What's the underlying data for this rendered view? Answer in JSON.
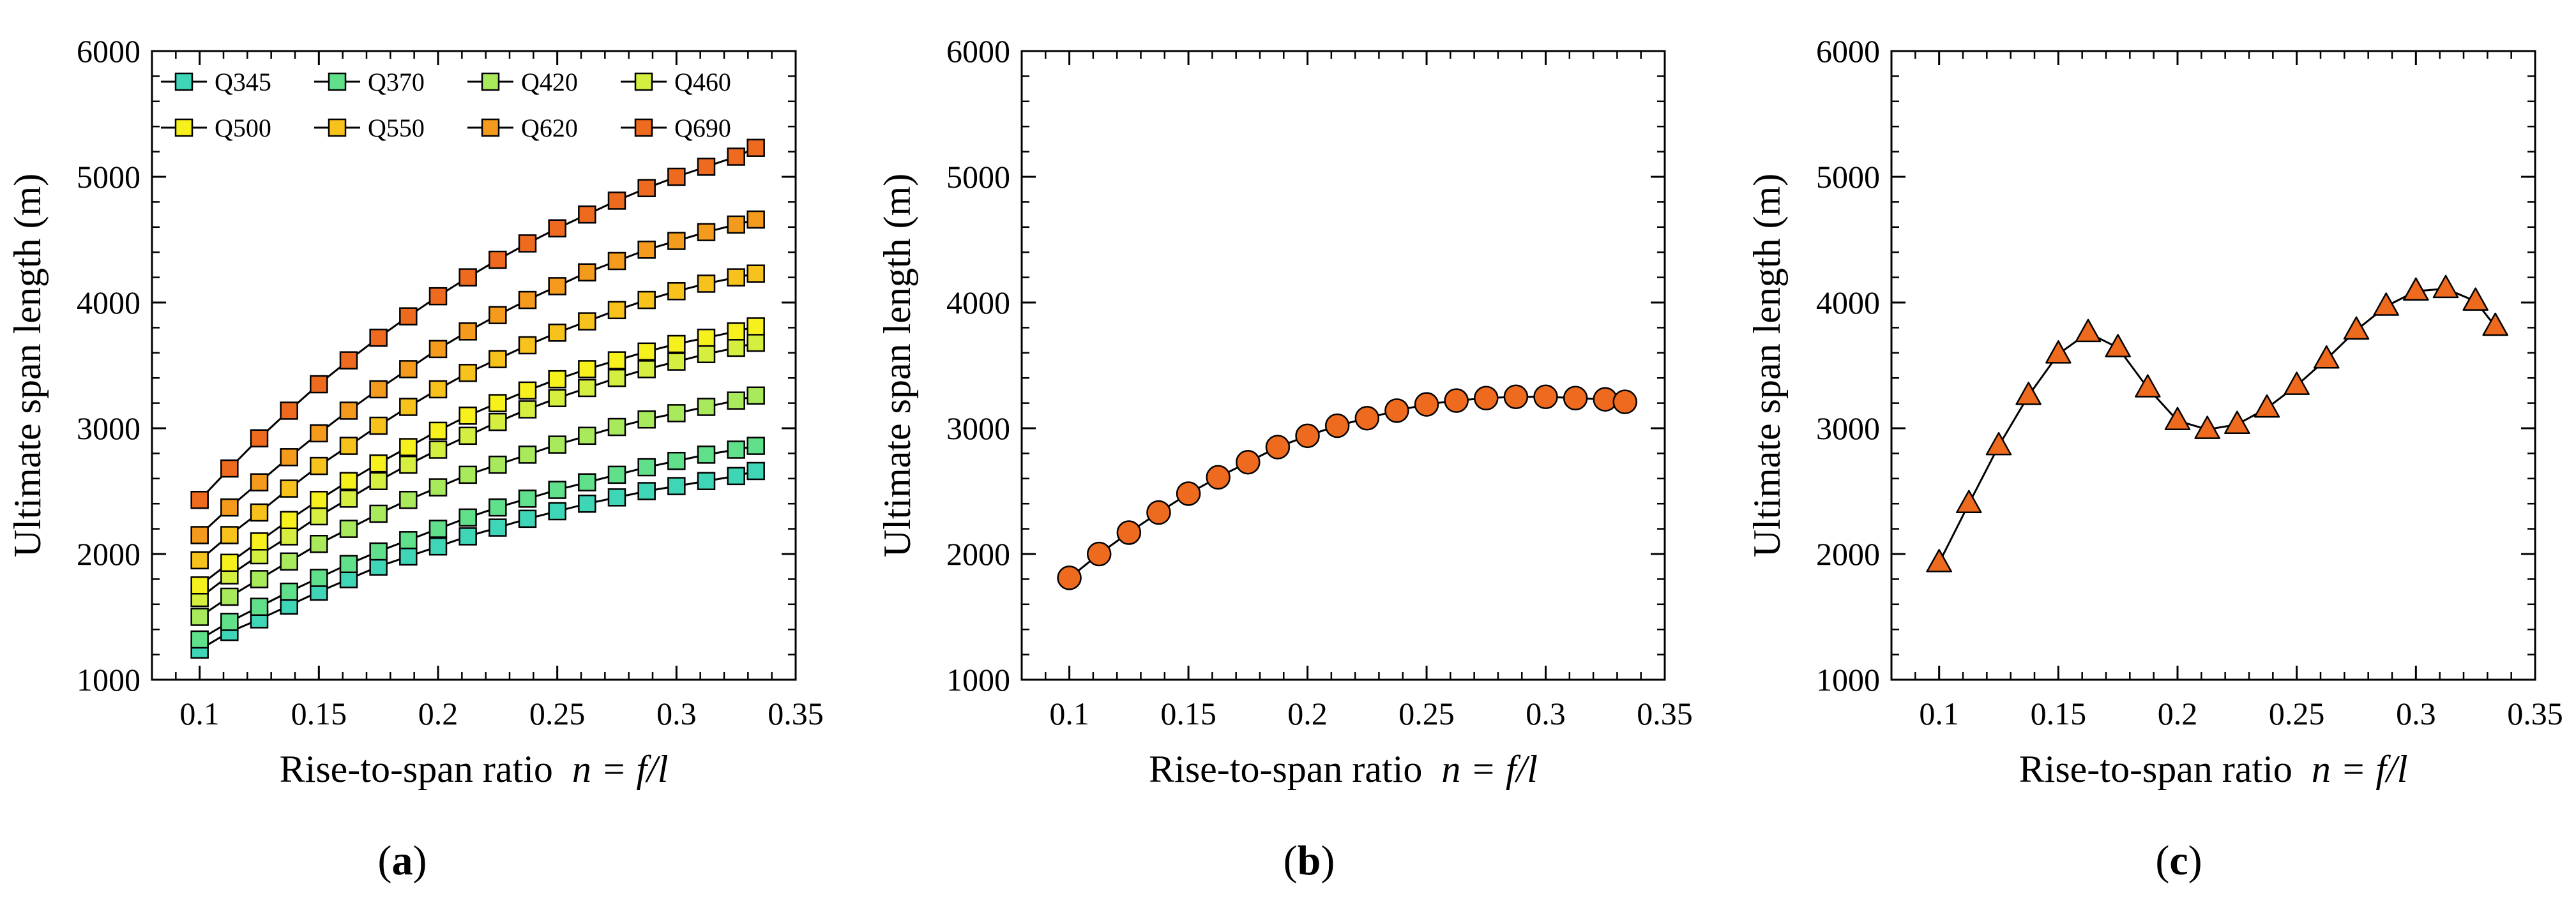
{
  "chart_data": [
    {
      "type": "line",
      "panel_label": "(a)",
      "panel_letter": "a",
      "xlabel_text": "Rise-to-span ratio",
      "xlabel_math": "n = f/l",
      "ylabel": "Ultimate span length (m)",
      "xlim": [
        0.08,
        0.35
      ],
      "ylim": [
        1000,
        6000
      ],
      "xticks": [
        "0.1",
        "0.15",
        "0.2",
        "0.25",
        "0.3",
        "0.35"
      ],
      "yticks": [
        "1000",
        "2000",
        "3000",
        "4000",
        "5000",
        "6000"
      ],
      "legend_position": "top-left",
      "marker": "square",
      "x": [
        0.1,
        0.1125,
        0.125,
        0.1375,
        0.15,
        0.1625,
        0.175,
        0.1875,
        0.2,
        0.2125,
        0.225,
        0.2375,
        0.25,
        0.2625,
        0.275,
        0.2875,
        0.3,
        0.3125,
        0.325,
        0.3333
      ],
      "series": [
        {
          "name": "Q345",
          "color": "#3fd6b8",
          "values": [
            1240,
            1380,
            1480,
            1590,
            1700,
            1800,
            1900,
            1980,
            2060,
            2140,
            2210,
            2280,
            2340,
            2400,
            2450,
            2500,
            2540,
            2580,
            2620,
            2660
          ]
        },
        {
          "name": "Q370",
          "color": "#60e08a",
          "values": [
            1320,
            1460,
            1580,
            1700,
            1810,
            1920,
            2020,
            2110,
            2200,
            2290,
            2370,
            2440,
            2510,
            2570,
            2630,
            2690,
            2740,
            2790,
            2830,
            2860
          ]
        },
        {
          "name": "Q420",
          "color": "#a8ea5c",
          "values": [
            1500,
            1660,
            1800,
            1940,
            2080,
            2200,
            2320,
            2430,
            2530,
            2630,
            2710,
            2790,
            2870,
            2940,
            3010,
            3070,
            3120,
            3170,
            3220,
            3260
          ]
        },
        {
          "name": "Q460",
          "color": "#d6ee40",
          "values": [
            1650,
            1830,
            1990,
            2140,
            2300,
            2440,
            2580,
            2710,
            2830,
            2940,
            3050,
            3150,
            3240,
            3320,
            3400,
            3470,
            3530,
            3590,
            3640,
            3680
          ]
        },
        {
          "name": "Q500",
          "color": "#f6f01c",
          "values": [
            1750,
            1930,
            2100,
            2270,
            2430,
            2580,
            2720,
            2850,
            2980,
            3100,
            3200,
            3300,
            3390,
            3470,
            3540,
            3610,
            3670,
            3720,
            3770,
            3810
          ]
        },
        {
          "name": "Q550",
          "color": "#f8c21c",
          "values": [
            1950,
            2150,
            2330,
            2520,
            2700,
            2860,
            3020,
            3170,
            3310,
            3440,
            3550,
            3660,
            3760,
            3850,
            3940,
            4020,
            4090,
            4150,
            4200,
            4230
          ]
        },
        {
          "name": "Q620",
          "color": "#f49a1c",
          "values": [
            2150,
            2370,
            2570,
            2770,
            2960,
            3140,
            3310,
            3470,
            3630,
            3770,
            3900,
            4020,
            4130,
            4240,
            4330,
            4420,
            4490,
            4560,
            4620,
            4660
          ]
        },
        {
          "name": "Q690",
          "color": "#ee6a1e",
          "values": [
            2430,
            2680,
            2920,
            3140,
            3350,
            3540,
            3720,
            3890,
            4050,
            4200,
            4340,
            4470,
            4590,
            4700,
            4810,
            4910,
            5000,
            5080,
            5160,
            5230
          ]
        }
      ]
    },
    {
      "type": "line",
      "panel_label": "(b)",
      "panel_letter": "b",
      "xlabel_text": "Rise-to-span ratio",
      "xlabel_math": "n = f/l",
      "ylabel": "Ultimate span length (m)",
      "xlim": [
        0.08,
        0.35
      ],
      "ylim": [
        1000,
        6000
      ],
      "xticks": [
        "0.1",
        "0.15",
        "0.2",
        "0.25",
        "0.3",
        "0.35"
      ],
      "yticks": [
        "1000",
        "2000",
        "3000",
        "4000",
        "5000",
        "6000"
      ],
      "marker": "circle",
      "series": [
        {
          "name": "",
          "color": "#ee6a1e",
          "x": [
            0.1,
            0.1125,
            0.125,
            0.1375,
            0.15,
            0.1625,
            0.175,
            0.1875,
            0.2,
            0.2125,
            0.225,
            0.2375,
            0.25,
            0.2625,
            0.275,
            0.2875,
            0.3,
            0.3125,
            0.325,
            0.3333
          ],
          "values": [
            1810,
            2000,
            2170,
            2330,
            2480,
            2610,
            2730,
            2850,
            2940,
            3020,
            3080,
            3140,
            3190,
            3220,
            3240,
            3250,
            3250,
            3240,
            3230,
            3210
          ]
        }
      ]
    },
    {
      "type": "line",
      "panel_label": "(c)",
      "panel_letter": "c",
      "xlabel_text": "Rise-to-span ratio",
      "xlabel_math": "n = f/l",
      "ylabel": "Ultimate span length (m)",
      "xlim": [
        0.08,
        0.35
      ],
      "ylim": [
        1000,
        6000
      ],
      "xticks": [
        "0.1",
        "0.15",
        "0.2",
        "0.25",
        "0.3",
        "0.35"
      ],
      "yticks": [
        "1000",
        "2000",
        "3000",
        "4000",
        "5000",
        "6000"
      ],
      "marker": "triangle",
      "series": [
        {
          "name": "",
          "color": "#ee6a1e",
          "x": [
            0.1,
            0.1125,
            0.125,
            0.1375,
            0.15,
            0.1625,
            0.175,
            0.1875,
            0.2,
            0.2125,
            0.225,
            0.2375,
            0.25,
            0.2625,
            0.275,
            0.2875,
            0.3,
            0.3125,
            0.325,
            0.3333
          ],
          "values": [
            1930,
            2400,
            2860,
            3260,
            3590,
            3760,
            3640,
            3320,
            3060,
            2990,
            3030,
            3160,
            3340,
            3550,
            3780,
            3970,
            4090,
            4110,
            4010,
            3810
          ]
        }
      ]
    }
  ]
}
